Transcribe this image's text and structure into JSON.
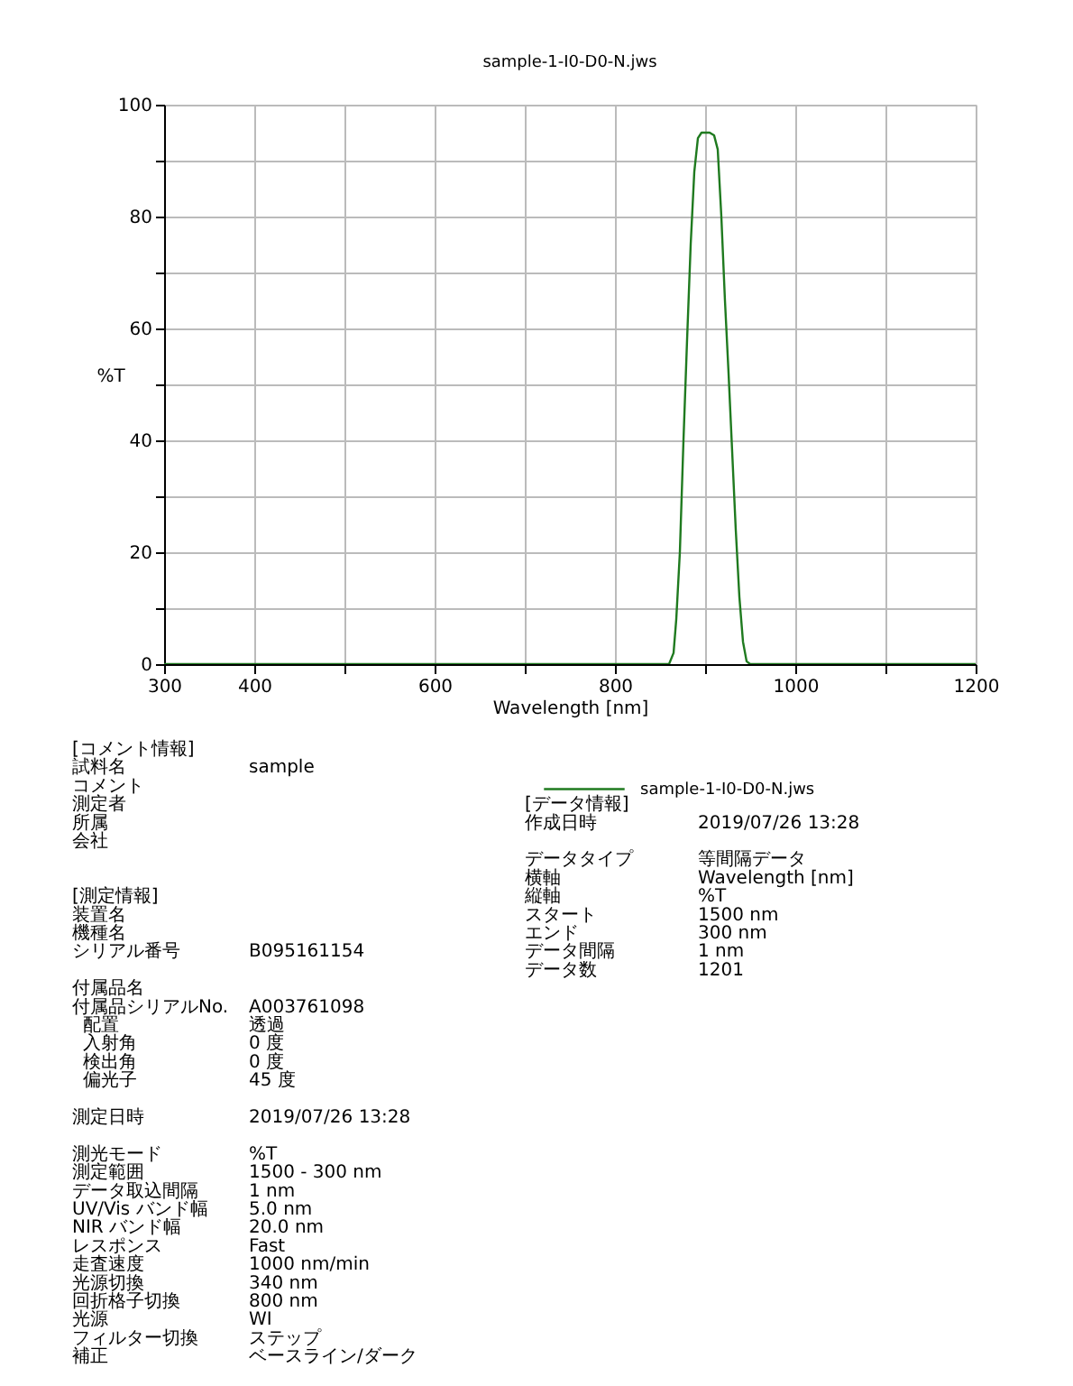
{
  "chart_data": {
    "type": "line",
    "title": "sample-1-I0-D0-N.jws",
    "xlabel": "Wavelength [nm]",
    "ylabel": "%T",
    "x": [
      300,
      860,
      865,
      868,
      872,
      876,
      880,
      884,
      888,
      892,
      896,
      905,
      910,
      914,
      918,
      922,
      926,
      930,
      934,
      938,
      942,
      946,
      950,
      1200
    ],
    "series": [
      {
        "name": "sample-1-I0-D0-N.jws",
        "color": "#1f7a1f",
        "values": [
          0,
          0,
          2,
          8,
          20,
          40,
          58,
          75,
          88,
          94,
          95,
          95,
          94.5,
          92,
          80,
          65,
          52,
          38,
          24,
          12,
          4,
          0.5,
          0,
          0
        ]
      }
    ],
    "xlim": [
      300,
      1200
    ],
    "xticks": [
      300,
      400,
      {
        "value": 500,
        "label": null
      },
      600,
      {
        "value": 700,
        "label": null
      },
      800,
      {
        "value": 900,
        "label": null
      },
      1000,
      {
        "value": 1100,
        "label": null
      },
      1200
    ],
    "ylim": [
      0,
      100
    ],
    "yticks": [
      0,
      {
        "value": 10,
        "label": null
      },
      20,
      {
        "value": 30,
        "label": null
      },
      40,
      {
        "value": 50,
        "label": null
      },
      60,
      {
        "value": 70,
        "label": null
      },
      80,
      {
        "value": 90,
        "label": null
      },
      100
    ],
    "grid": true,
    "legend": "bottom",
    "marker": "none",
    "line_style": "solid",
    "annotations": [
      "[コメント情報]",
      "試料名",
      "sample",
      "コメント",
      "測定者",
      "所属",
      "会社",
      "[測定情報]",
      "装置名",
      "機種名",
      "シリアル番号",
      "B095161154",
      "付属品名",
      "付属品シリアルNo.",
      "A003761098",
      "配置",
      "透過",
      "入射角",
      "0 度",
      "検出角",
      "0 度",
      "偏光子",
      "45 度",
      "測定日時",
      "2019/07/26 13:28",
      "測光モード",
      "%T",
      "測定範囲",
      "1500 - 300 nm",
      "データ取込間隔",
      "1 nm",
      "UV/Vis バンド幅",
      "5.0 nm",
      "NIR バンド幅",
      "20.0 nm",
      "レスポンス",
      "Fast",
      "走査速度",
      "1000 nm/min",
      "光源切換",
      "340 nm",
      "回折格子切換",
      "800 nm",
      "光源",
      "WI",
      "フィルター切換",
      "ステップ",
      "補正",
      "ベースライン/ダーク",
      "[データ情報]",
      "作成日時",
      "2019/07/26 13:28",
      "データタイプ",
      "等間隔データ",
      "横軸",
      "Wavelength [nm]",
      "縦軸",
      "%T",
      "スタート",
      "1500 nm",
      "エンド",
      "300 nm",
      "データ間隔",
      "1 nm",
      "データ数",
      "1201"
    ]
  }
}
